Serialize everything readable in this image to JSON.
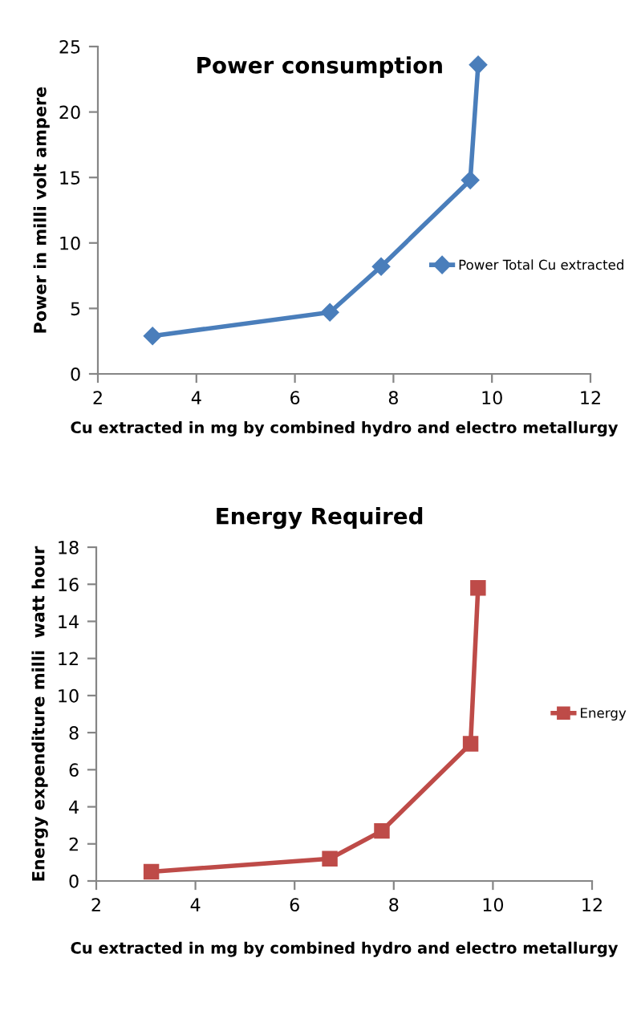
{
  "chart_data": [
    {
      "type": "line",
      "title": "Power consumption",
      "xlabel": "Cu extracted in mg by combined hydro and electro metallurgy",
      "ylabel": "Power in milli volt ampere",
      "x": [
        3.11,
        6.71,
        7.75,
        9.56,
        9.72
      ],
      "series": [
        {
          "name": "Power Total Cu extracted",
          "color": "#4a7ebb",
          "values": [
            2.9,
            4.7,
            8.2,
            14.8,
            23.6
          ]
        }
      ],
      "xlim": [
        2,
        12
      ],
      "xticks": [
        2,
        4,
        6,
        8,
        10,
        12
      ],
      "ylim": [
        0,
        25
      ],
      "yticks": [
        0,
        5,
        10,
        15,
        20,
        25
      ],
      "marker": "diamond",
      "legend": "right",
      "grid": false
    },
    {
      "type": "line",
      "title": "Energy Required",
      "xlabel": "Cu extracted in mg by combined hydro and electro metallurgy",
      "ylabel": "Energy expenditure milli  watt hour",
      "x": [
        3.11,
        6.71,
        7.76,
        9.55,
        9.7
      ],
      "series": [
        {
          "name": "Energy",
          "color": "#be4b48",
          "values": [
            0.5,
            1.2,
            2.7,
            7.4,
            15.8
          ]
        }
      ],
      "xlim": [
        2,
        12
      ],
      "xticks": [
        2,
        4,
        6,
        8,
        10,
        12
      ],
      "ylim": [
        0,
        18
      ],
      "yticks": [
        0,
        2,
        4,
        6,
        8,
        10,
        12,
        14,
        16,
        18
      ],
      "marker": "square",
      "legend": "right",
      "grid": false
    }
  ]
}
